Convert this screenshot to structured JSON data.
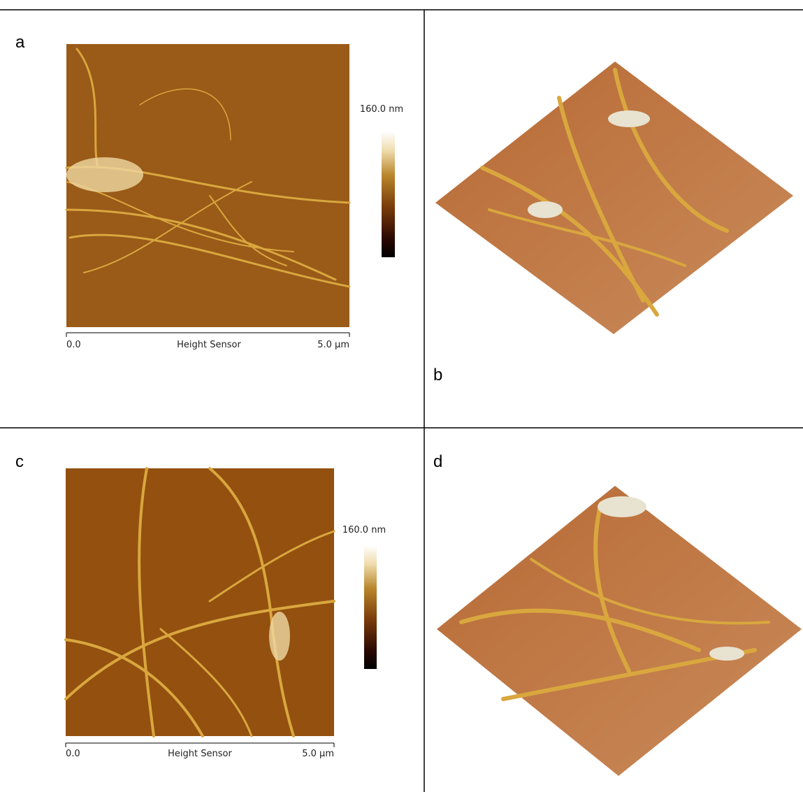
{
  "panels": [
    {
      "label": "a",
      "scale_start": "0.0",
      "scale_name": "Height Sensor",
      "scale_end": "5.0 µm",
      "colorbar_max": "160.0 nm"
    },
    {
      "label": "b"
    },
    {
      "label": "c",
      "scale_start": "0.0",
      "scale_name": "Height Sensor",
      "scale_end": "5.0 µm",
      "colorbar_max": "160.0 nm"
    },
    {
      "label": "d"
    }
  ]
}
